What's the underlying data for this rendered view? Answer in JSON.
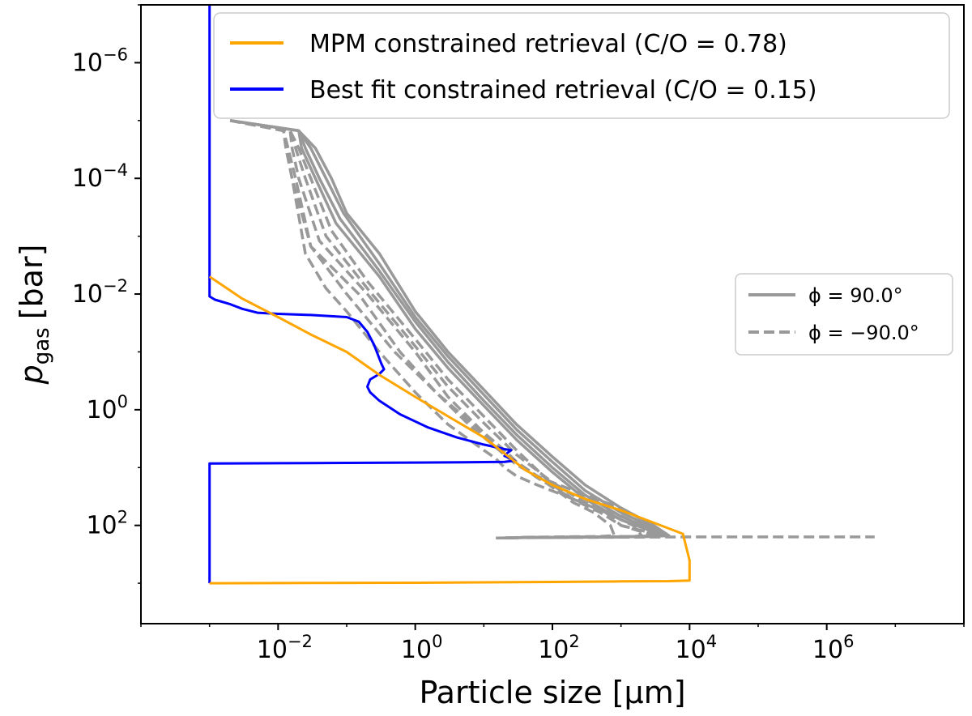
{
  "chart_data": {
    "type": "line",
    "xscale": "log",
    "yscale": "log",
    "y_inverted": true,
    "xlabel": "Particle size [μm]",
    "ylabel": {
      "main": "p",
      "sub": "gas",
      "unit": "[bar]"
    },
    "xlim": [
      0.0001,
      100000000
    ],
    "ylim": [
      5000,
      1e-07
    ],
    "xticks": [
      {
        "value": 0.01,
        "base": "10",
        "exp": "−2"
      },
      {
        "value": 1,
        "base": "10",
        "exp": "0"
      },
      {
        "value": 100,
        "base": "10",
        "exp": "2"
      },
      {
        "value": 10000,
        "base": "10",
        "exp": "4"
      },
      {
        "value": 1000000,
        "base": "10",
        "exp": "6"
      }
    ],
    "yticks": [
      {
        "value": 1e-06,
        "base": "10",
        "exp": "−6"
      },
      {
        "value": 0.0001,
        "base": "10",
        "exp": "−4"
      },
      {
        "value": 0.01,
        "base": "10",
        "exp": "−2"
      },
      {
        "value": 1,
        "base": "10",
        "exp": "0"
      },
      {
        "value": 100,
        "base": "10",
        "exp": "2"
      }
    ],
    "legend_main": {
      "placement": "top",
      "entries": [
        {
          "label": "MPM constrained retrieval (C/O = 0.78)",
          "color": "#FFA500"
        },
        {
          "label": "Best fit constrained retrieval (C/O = 0.15)",
          "color": "#0000FF"
        }
      ]
    },
    "legend_phi": {
      "placement": "center-right",
      "entries": [
        {
          "label": "ϕ = 90.0°",
          "style": "solid",
          "color": "#999999"
        },
        {
          "label": "ϕ = −90.0°",
          "style": "dashed",
          "color": "#999999"
        }
      ]
    },
    "series": [
      {
        "name": "Best fit constrained retrieval (C/O = 0.15)",
        "color": "#0000FF",
        "style": "solid",
        "points": [
          [
            0.001,
            1e-07
          ],
          [
            0.001,
            0.011
          ],
          [
            0.0012,
            0.0125
          ],
          [
            0.002,
            0.015
          ],
          [
            0.003,
            0.018
          ],
          [
            0.005,
            0.021
          ],
          [
            0.01,
            0.022
          ],
          [
            0.03,
            0.023
          ],
          [
            0.1,
            0.025
          ],
          [
            0.15,
            0.03
          ],
          [
            0.2,
            0.045
          ],
          [
            0.25,
            0.075
          ],
          [
            0.32,
            0.16
          ],
          [
            0.35,
            0.2
          ],
          [
            0.3,
            0.24
          ],
          [
            0.22,
            0.3
          ],
          [
            0.2,
            0.4
          ],
          [
            0.22,
            0.5
          ],
          [
            0.3,
            0.7
          ],
          [
            0.6,
            1.2
          ],
          [
            1.5,
            2.0
          ],
          [
            4,
            3.0
          ],
          [
            10,
            4.0
          ],
          [
            20,
            4.8
          ],
          [
            25,
            5.0
          ],
          [
            22,
            5.6
          ],
          [
            20,
            6.3
          ],
          [
            25,
            7.0
          ],
          [
            28,
            7.6
          ],
          [
            20,
            8.0
          ],
          [
            5,
            8.1
          ],
          [
            1,
            8.2
          ],
          [
            0.1,
            8.3
          ],
          [
            0.01,
            8.4
          ],
          [
            0.001,
            8.5
          ],
          [
            0.001,
            1000
          ]
        ]
      },
      {
        "name": "MPM constrained retrieval (C/O = 0.78)",
        "color": "#FFA500",
        "style": "solid",
        "points": [
          [
            0.001,
            0.005
          ],
          [
            0.003,
            0.012
          ],
          [
            0.01,
            0.025
          ],
          [
            0.03,
            0.05
          ],
          [
            0.1,
            0.1
          ],
          [
            0.3,
            0.25
          ],
          [
            1,
            0.6
          ],
          [
            3,
            1.3
          ],
          [
            10,
            3.0
          ],
          [
            25,
            7.0
          ],
          [
            40,
            11
          ],
          [
            100,
            20
          ],
          [
            300,
            35
          ],
          [
            1000,
            55
          ],
          [
            3000,
            90
          ],
          [
            8000,
            140
          ],
          [
            10000,
            400
          ],
          [
            10000,
            900
          ],
          [
            5000,
            920
          ],
          [
            1000,
            930
          ],
          [
            100,
            950
          ],
          [
            1,
            980
          ],
          [
            0.001,
            1000
          ]
        ]
      },
      {
        "name": "phi90_1",
        "color": "#999999",
        "style": "solid",
        "points": [
          [
            0.002,
            1e-05
          ],
          [
            0.02,
            1.5e-05
          ],
          [
            0.035,
            3e-05
          ],
          [
            0.06,
            0.0001
          ],
          [
            0.1,
            0.0004
          ],
          [
            0.3,
            0.002
          ],
          [
            1,
            0.02
          ],
          [
            3,
            0.1
          ],
          [
            10,
            0.45
          ],
          [
            30,
            1.8
          ],
          [
            100,
            6.5
          ],
          [
            300,
            20
          ],
          [
            1000,
            50
          ],
          [
            3000,
            100
          ],
          [
            5000,
            150
          ],
          [
            3000,
            155
          ],
          [
            1000,
            158
          ],
          [
            300,
            160
          ],
          [
            40,
            162
          ],
          [
            20,
            165
          ]
        ]
      },
      {
        "name": "phi90_2",
        "color": "#999999",
        "style": "solid",
        "points": [
          [
            0.002,
            1e-05
          ],
          [
            0.02,
            1.5e-05
          ],
          [
            0.03,
            3e-05
          ],
          [
            0.05,
            0.0001
          ],
          [
            0.09,
            0.0004
          ],
          [
            0.3,
            0.003
          ],
          [
            1,
            0.025
          ],
          [
            3,
            0.12
          ],
          [
            10,
            0.55
          ],
          [
            30,
            2.2
          ],
          [
            100,
            8
          ],
          [
            300,
            25
          ],
          [
            1000,
            60
          ],
          [
            3000,
            110
          ],
          [
            4500,
            150
          ],
          [
            3000,
            155
          ],
          [
            1000,
            158
          ],
          [
            300,
            160
          ],
          [
            40,
            162
          ],
          [
            20,
            165
          ]
        ]
      },
      {
        "name": "phi90_3",
        "color": "#999999",
        "style": "solid",
        "points": [
          [
            0.002,
            1e-05
          ],
          [
            0.02,
            1.5e-05
          ],
          [
            0.025,
            3e-05
          ],
          [
            0.04,
            0.0001
          ],
          [
            0.08,
            0.0005
          ],
          [
            0.3,
            0.004
          ],
          [
            1,
            0.03
          ],
          [
            3,
            0.15
          ],
          [
            10,
            0.7
          ],
          [
            30,
            2.7
          ],
          [
            100,
            10
          ],
          [
            300,
            30
          ],
          [
            1000,
            70
          ],
          [
            3000,
            120
          ],
          [
            4000,
            150
          ],
          [
            3000,
            155
          ],
          [
            1000,
            158
          ],
          [
            300,
            160
          ],
          [
            40,
            162
          ],
          [
            20,
            165
          ]
        ]
      },
      {
        "name": "phi90_4",
        "color": "#999999",
        "style": "solid",
        "points": [
          [
            0.002,
            1e-05
          ],
          [
            0.02,
            1.5e-05
          ],
          [
            0.022,
            3e-05
          ],
          [
            0.035,
            0.0001
          ],
          [
            0.07,
            0.0006
          ],
          [
            0.3,
            0.005
          ],
          [
            1,
            0.04
          ],
          [
            3,
            0.19
          ],
          [
            10,
            0.85
          ],
          [
            30,
            3.3
          ],
          [
            100,
            12
          ],
          [
            300,
            35
          ],
          [
            1000,
            80
          ],
          [
            3000,
            130
          ],
          [
            3500,
            150
          ],
          [
            3000,
            155
          ],
          [
            1000,
            158
          ],
          [
            300,
            160
          ],
          [
            40,
            162
          ],
          [
            20,
            165
          ]
        ]
      },
      {
        "name": "phiM90_1",
        "color": "#999999",
        "style": "dashed",
        "points": [
          [
            0.002,
            1e-05
          ],
          [
            0.015,
            1.5e-05
          ],
          [
            0.02,
            3e-05
          ],
          [
            0.03,
            0.0001
          ],
          [
            0.06,
            0.0008
          ],
          [
            0.2,
            0.006
          ],
          [
            1,
            0.06
          ],
          [
            3,
            0.3
          ],
          [
            10,
            1.3
          ],
          [
            30,
            5
          ],
          [
            60,
            11
          ],
          [
            100,
            20
          ],
          [
            200,
            35
          ],
          [
            300,
            45
          ],
          [
            500,
            60
          ],
          [
            1000,
            100
          ],
          [
            4000,
            150
          ],
          [
            2000,
            155
          ],
          [
            500,
            158
          ],
          [
            100,
            160
          ],
          [
            40,
            162
          ],
          [
            20,
            165
          ]
        ]
      },
      {
        "name": "phiM90_2",
        "color": "#999999",
        "style": "dashed",
        "points": [
          [
            0.002,
            1e-05
          ],
          [
            0.015,
            1.5e-05
          ],
          [
            0.018,
            3e-05
          ],
          [
            0.025,
            0.0001
          ],
          [
            0.05,
            0.001
          ],
          [
            0.2,
            0.008
          ],
          [
            1,
            0.08
          ],
          [
            3,
            0.4
          ],
          [
            10,
            1.7
          ],
          [
            30,
            6
          ],
          [
            100,
            18
          ],
          [
            200,
            30
          ],
          [
            300,
            40
          ],
          [
            600,
            60
          ],
          [
            1000,
            100
          ],
          [
            3000,
            150
          ],
          [
            2000,
            155
          ],
          [
            500,
            158
          ],
          [
            100,
            160
          ],
          [
            40,
            162
          ],
          [
            20,
            165
          ]
        ]
      },
      {
        "name": "phiM90_3",
        "color": "#999999",
        "style": "dashed",
        "points": [
          [
            0.002,
            1e-05
          ],
          [
            0.015,
            1.5e-05
          ],
          [
            0.016,
            3e-05
          ],
          [
            0.02,
            0.0001
          ],
          [
            0.04,
            0.0012
          ],
          [
            0.2,
            0.01
          ],
          [
            1,
            0.1
          ],
          [
            3,
            0.6
          ],
          [
            10,
            2.5
          ],
          [
            20,
            5
          ],
          [
            30,
            8
          ],
          [
            60,
            14
          ],
          [
            100,
            22
          ],
          [
            200,
            40
          ],
          [
            400,
            60
          ],
          [
            700,
            100
          ],
          [
            800,
            150
          ],
          [
            500,
            155
          ],
          [
            100,
            158
          ],
          [
            40,
            160
          ],
          [
            20,
            165
          ]
        ]
      },
      {
        "name": "phiM90_4",
        "color": "#999999",
        "style": "dashed",
        "points": [
          [
            0.002,
            1e-05
          ],
          [
            0.012,
            1.5e-05
          ],
          [
            0.014,
            3e-05
          ],
          [
            0.018,
            0.0001
          ],
          [
            0.03,
            0.0015
          ],
          [
            0.1,
            0.01
          ],
          [
            0.5,
            0.1
          ],
          [
            2,
            0.5
          ],
          [
            7,
            1.8
          ],
          [
            15,
            4
          ],
          [
            20,
            6
          ],
          [
            30,
            9
          ],
          [
            60,
            14
          ],
          [
            100,
            18
          ],
          [
            300,
            30
          ],
          [
            1000,
            50
          ],
          [
            3000,
            100
          ],
          [
            4000,
            150
          ],
          [
            2000,
            155
          ],
          [
            500,
            158
          ],
          [
            100,
            160
          ],
          [
            40,
            162
          ],
          [
            20,
            165
          ]
        ]
      },
      {
        "name": "phiM90_5",
        "color": "#999999",
        "style": "dashed",
        "points": [
          [
            0.002,
            1e-05
          ],
          [
            0.012,
            1.5e-05
          ],
          [
            0.013,
            3e-05
          ],
          [
            0.016,
            0.0001
          ],
          [
            0.025,
            0.002
          ],
          [
            0.05,
            0.008
          ],
          [
            0.1,
            0.02
          ],
          [
            0.3,
            0.1
          ],
          [
            1,
            0.5
          ],
          [
            3,
            1.8
          ],
          [
            10,
            5
          ],
          [
            15,
            7
          ],
          [
            20,
            10
          ],
          [
            30,
            14
          ],
          [
            60,
            20
          ],
          [
            200,
            35
          ],
          [
            800,
            60
          ],
          [
            2000,
            100
          ],
          [
            3000,
            150
          ],
          [
            2000,
            155
          ],
          [
            500,
            158
          ],
          [
            100,
            160
          ],
          [
            40,
            162
          ],
          [
            20,
            165
          ]
        ]
      },
      {
        "name": "phiM90_6",
        "color": "#999999",
        "style": "dashed",
        "points": [
          [
            0.002,
            1e-05
          ],
          [
            0.012,
            1.5e-05
          ],
          [
            0.013,
            3e-05
          ],
          [
            0.016,
            0.0001
          ],
          [
            0.03,
            0.0015
          ],
          [
            0.15,
            0.01
          ],
          [
            0.6,
            0.1
          ],
          [
            2,
            0.5
          ],
          [
            6,
            1.8
          ],
          [
            20,
            6
          ],
          [
            60,
            15
          ],
          [
            200,
            35
          ],
          [
            600,
            60
          ],
          [
            1500,
            100
          ],
          [
            2000,
            150
          ],
          [
            1500,
            155
          ],
          [
            400,
            158
          ],
          [
            100,
            160
          ],
          [
            40,
            162
          ],
          [
            20,
            165
          ]
        ]
      },
      {
        "name": "phiM90_tail",
        "color": "#999999",
        "style": "dashed",
        "points": [
          [
            15,
            165
          ],
          [
            100,
            162
          ],
          [
            1000,
            160
          ],
          [
            10000,
            158
          ],
          [
            100000,
            158
          ],
          [
            5000000,
            158
          ]
        ]
      }
    ]
  }
}
